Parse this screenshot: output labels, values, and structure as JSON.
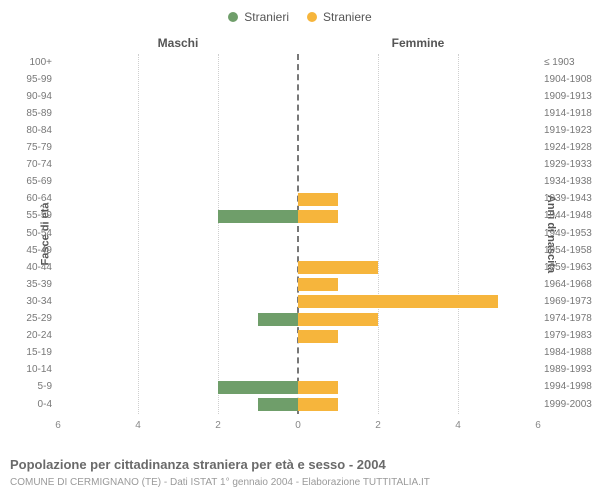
{
  "legend": {
    "items": [
      {
        "label": "Stranieri",
        "color": "#6f9e6a"
      },
      {
        "label": "Straniere",
        "color": "#f6b53c"
      }
    ]
  },
  "chart": {
    "type": "population-pyramid",
    "left_title": "Maschi",
    "right_title": "Femmine",
    "left_axis_label": "Fasce di età",
    "right_axis_label": "Anni di nascita",
    "x_max": 6,
    "x_ticks": [
      6,
      4,
      2,
      0,
      2,
      4,
      6
    ],
    "row_height": 17.1,
    "bar_inset": 2,
    "colors": {
      "male": "#6f9e6a",
      "female": "#f6b53c",
      "grid": "#cfcfcf",
      "centerline": "#777777",
      "text": "#777777",
      "background": "#ffffff"
    },
    "rows": [
      {
        "age": "100+",
        "birth": "≤ 1903",
        "m": 0,
        "f": 0
      },
      {
        "age": "95-99",
        "birth": "1904-1908",
        "m": 0,
        "f": 0
      },
      {
        "age": "90-94",
        "birth": "1909-1913",
        "m": 0,
        "f": 0
      },
      {
        "age": "85-89",
        "birth": "1914-1918",
        "m": 0,
        "f": 0
      },
      {
        "age": "80-84",
        "birth": "1919-1923",
        "m": 0,
        "f": 0
      },
      {
        "age": "75-79",
        "birth": "1924-1928",
        "m": 0,
        "f": 0
      },
      {
        "age": "70-74",
        "birth": "1929-1933",
        "m": 0,
        "f": 0
      },
      {
        "age": "65-69",
        "birth": "1934-1938",
        "m": 0,
        "f": 0
      },
      {
        "age": "60-64",
        "birth": "1939-1943",
        "m": 0,
        "f": 1
      },
      {
        "age": "55-59",
        "birth": "1944-1948",
        "m": 2,
        "f": 1
      },
      {
        "age": "50-54",
        "birth": "1949-1953",
        "m": 0,
        "f": 0
      },
      {
        "age": "45-49",
        "birth": "1954-1958",
        "m": 0,
        "f": 0
      },
      {
        "age": "40-44",
        "birth": "1959-1963",
        "m": 0,
        "f": 2
      },
      {
        "age": "35-39",
        "birth": "1964-1968",
        "m": 0,
        "f": 1
      },
      {
        "age": "30-34",
        "birth": "1969-1973",
        "m": 0,
        "f": 5
      },
      {
        "age": "25-29",
        "birth": "1974-1978",
        "m": 1,
        "f": 2
      },
      {
        "age": "20-24",
        "birth": "1979-1983",
        "m": 0,
        "f": 1
      },
      {
        "age": "15-19",
        "birth": "1984-1988",
        "m": 0,
        "f": 0
      },
      {
        "age": "10-14",
        "birth": "1989-1993",
        "m": 0,
        "f": 0
      },
      {
        "age": "5-9",
        "birth": "1994-1998",
        "m": 2,
        "f": 1
      },
      {
        "age": "0-4",
        "birth": "1999-2003",
        "m": 1,
        "f": 1
      }
    ]
  },
  "caption": "Popolazione per cittadinanza straniera per età e sesso - 2004",
  "subcaption": "COMUNE DI CERMIGNANO (TE) - Dati ISTAT 1° gennaio 2004 - Elaborazione TUTTITALIA.IT"
}
